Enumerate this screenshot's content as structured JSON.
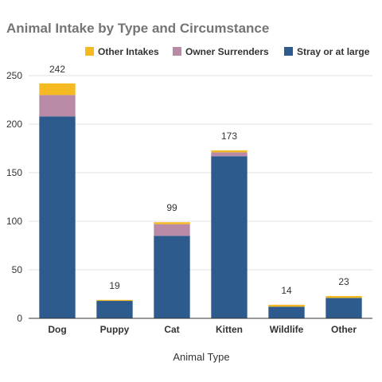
{
  "chart_data": {
    "type": "bar",
    "stacked": true,
    "title": "Animal Intake by Type and Circumstance",
    "xlabel": "Animal Type",
    "ylabel": "",
    "ylim": [
      0,
      250
    ],
    "yticks": [
      0,
      50,
      100,
      150,
      200,
      250
    ],
    "grid": true,
    "legend_position": "top-right",
    "categories": [
      "Dog",
      "Puppy",
      "Cat",
      "Kitten",
      "Wildlife",
      "Other"
    ],
    "series": [
      {
        "name": "Stray or at large",
        "color": "#2e5b8e",
        "values": [
          208,
          18,
          85,
          167,
          12,
          21
        ]
      },
      {
        "name": "Owner Surrenders",
        "color": "#b98aa6",
        "values": [
          22,
          0,
          12,
          4,
          0,
          0
        ]
      },
      {
        "name": "Other Intakes",
        "color": "#f5b921",
        "values": [
          12,
          1,
          2,
          2,
          2,
          2
        ]
      }
    ],
    "totals": [
      "242",
      "19",
      "99",
      "173",
      "14",
      "23"
    ]
  }
}
